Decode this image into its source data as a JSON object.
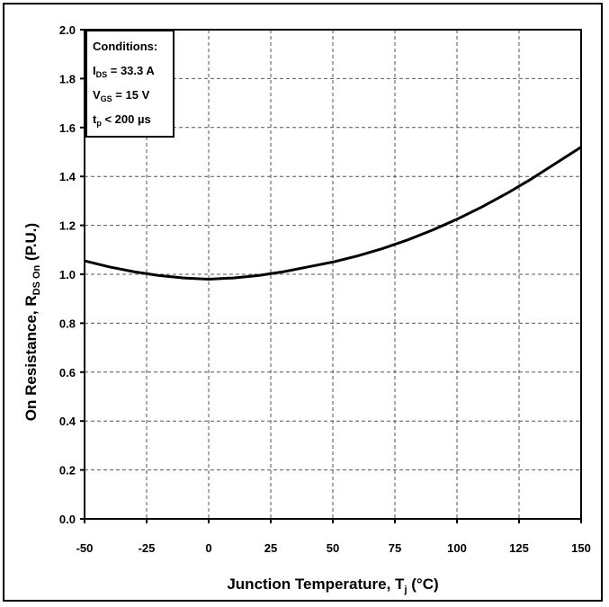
{
  "chart_data": {
    "type": "line",
    "xlabel": "Junction Temperature, T",
    "xlabel_sub": "j",
    "xlabel_suffix": " (°C)",
    "ylabel": "On Resistance, R",
    "ylabel_sub": "DS On",
    "ylabel_suffix": " (P.U.)",
    "xlim": [
      -50,
      150
    ],
    "ylim": [
      0.0,
      2.0
    ],
    "xticks": [
      -50,
      -25,
      0,
      25,
      50,
      75,
      100,
      125,
      150
    ],
    "xtick_labels": [
      "-50",
      "-25",
      "0",
      "25",
      "50",
      "75",
      "100",
      "125",
      "150"
    ],
    "yticks": [
      0.0,
      0.2,
      0.4,
      0.6,
      0.8,
      1.0,
      1.2,
      1.4,
      1.6,
      1.8,
      2.0
    ],
    "ytick_labels": [
      "0.0",
      "0.2",
      "0.4",
      "0.6",
      "0.8",
      "1.0",
      "1.2",
      "1.4",
      "1.6",
      "1.8",
      "2.0"
    ],
    "grid": true,
    "series": [
      {
        "x": [
          -50,
          -40,
          -30,
          -20,
          -10,
          0,
          10,
          20,
          30,
          40,
          50,
          60,
          70,
          80,
          90,
          100,
          110,
          120,
          130,
          140,
          150
        ],
        "y": [
          1.055,
          1.03,
          1.01,
          0.995,
          0.985,
          0.98,
          0.985,
          0.995,
          1.01,
          1.03,
          1.05,
          1.075,
          1.105,
          1.14,
          1.18,
          1.225,
          1.275,
          1.33,
          1.39,
          1.455,
          1.52
        ],
        "color": "#000000"
      }
    ],
    "conditions": {
      "title": "Conditions:",
      "lines": [
        {
          "main": "I",
          "sub": "DS",
          "rest": " = 33.3 A"
        },
        {
          "main": "V",
          "sub": "GS",
          "rest": " = 15 V"
        },
        {
          "main": "t",
          "sub": "p",
          "rest": " < 200 µs"
        }
      ]
    }
  }
}
